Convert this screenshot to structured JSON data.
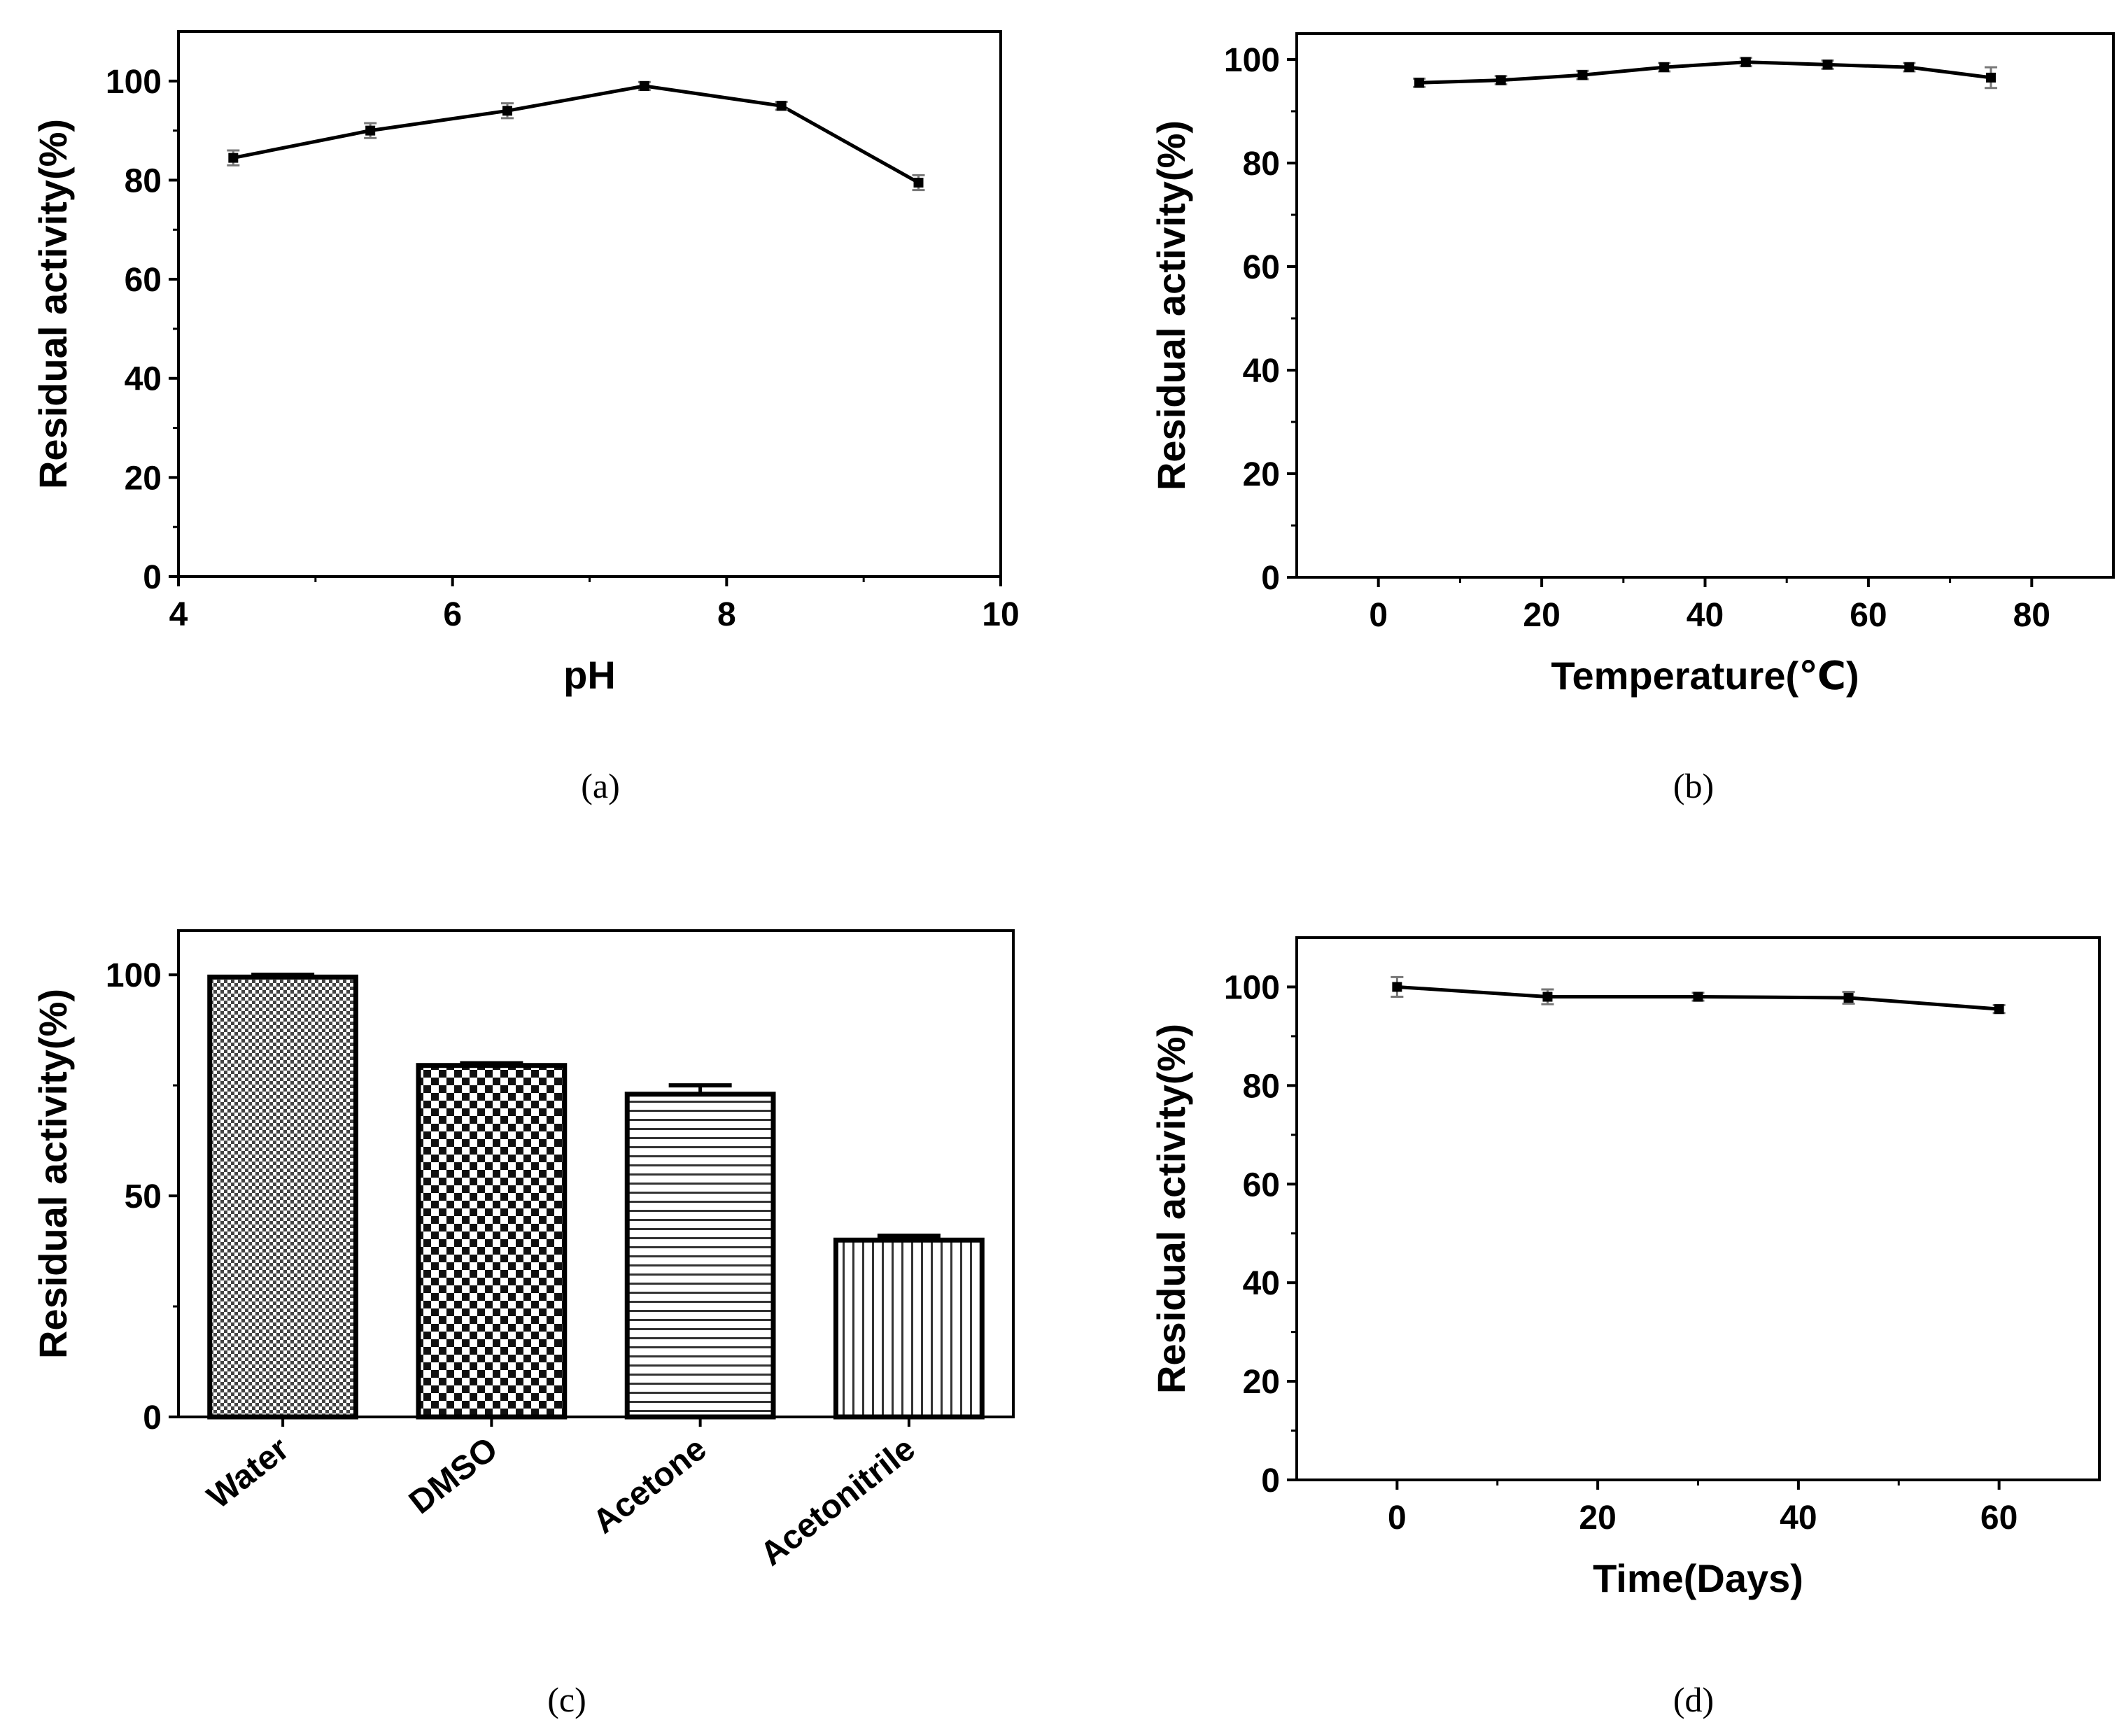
{
  "chart_data": [
    {
      "id": "a",
      "type": "line",
      "caption": "(a)",
      "xlabel": "pH",
      "ylabel": "Residual activity(%)",
      "xlim": [
        4,
        10
      ],
      "ylim": [
        0,
        110
      ],
      "xticks": [
        4,
        6,
        8,
        10
      ],
      "yticks": [
        0,
        20,
        40,
        60,
        80,
        100
      ],
      "x": [
        4.4,
        5.4,
        6.4,
        7.4,
        8.4,
        9.4
      ],
      "y": [
        84.5,
        90,
        94,
        99,
        95,
        79.5
      ],
      "err": [
        1.5,
        1.5,
        1.5,
        0.8,
        0.8,
        1.5
      ]
    },
    {
      "id": "b",
      "type": "line",
      "caption": "(b)",
      "xlabel": "Temperature(℃)",
      "ylabel": "Residual activity(%)",
      "xlim": [
        -10,
        90
      ],
      "ylim": [
        0,
        105
      ],
      "xticks": [
        0,
        20,
        40,
        60,
        80
      ],
      "yticks": [
        0,
        20,
        40,
        60,
        80,
        100
      ],
      "x": [
        5,
        15,
        25,
        35,
        45,
        55,
        65,
        75
      ],
      "y": [
        95.5,
        96,
        97,
        98.5,
        99.5,
        99,
        98.5,
        96.5
      ],
      "err": [
        0.8,
        0.8,
        0.8,
        0.8,
        0.8,
        0.8,
        0.8,
        2
      ]
    },
    {
      "id": "c",
      "type": "bar",
      "caption": "(c)",
      "xlabel": "",
      "ylabel": "Residual  activity(%)",
      "ylim": [
        0,
        110
      ],
      "yticks": [
        0,
        50,
        100
      ],
      "categories": [
        "Water",
        "DMSO",
        "Acetone",
        "Acetonitrile"
      ],
      "patterns": [
        "dense-check",
        "checker",
        "horizontal",
        "vertical"
      ],
      "values": [
        99.5,
        79.5,
        73,
        40
      ],
      "err": [
        0.5,
        0.5,
        2,
        1
      ]
    },
    {
      "id": "d",
      "type": "line",
      "caption": "(d)",
      "xlabel": "Time(Days)",
      "ylabel": "Residual  activity(%)",
      "xlim": [
        -10,
        70
      ],
      "ylim": [
        0,
        110
      ],
      "xticks": [
        0,
        20,
        40,
        60
      ],
      "yticks": [
        0,
        20,
        40,
        60,
        80,
        100
      ],
      "x": [
        0,
        15,
        30,
        45,
        60
      ],
      "y": [
        100,
        98,
        98,
        97.8,
        95.5
      ],
      "err": [
        2,
        1.5,
        0.8,
        1.2,
        0.8
      ]
    }
  ]
}
